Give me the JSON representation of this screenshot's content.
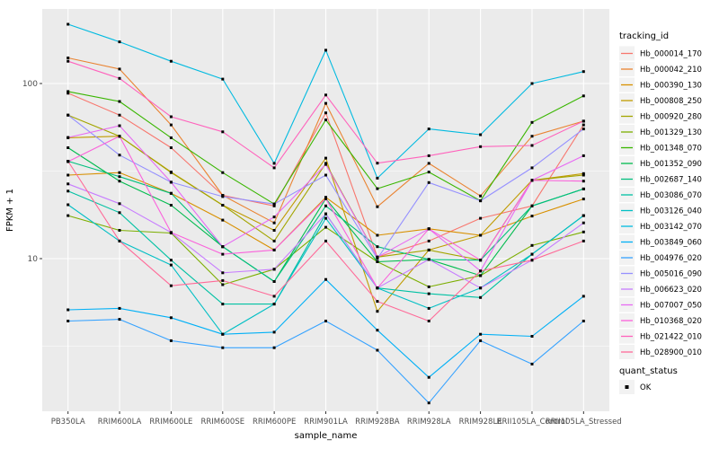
{
  "chart_data": {
    "type": "line",
    "title": "",
    "xlabel": "sample_name",
    "ylabel": "FPKM + 1",
    "y_scale": "log10",
    "y_ticks": [
      10,
      100
    ],
    "y_tick_labels": [
      "10",
      "100"
    ],
    "y_minor_ticks": [
      31.62,
      3.162
    ],
    "ylim": [
      1.35,
      270
    ],
    "grid": "on",
    "legend_position": "right",
    "panel_bg": "#EBEBEB",
    "grid_color": "#FFFFFF",
    "tick_label_color": "#4D4D4D",
    "point_color": "#000000",
    "legend_key_bg": "#F2F2F2",
    "categories": [
      "PB350LA",
      "RRIM600LA",
      "RRIM600LE",
      "RRIM600SE",
      "RRIM600PE",
      "RRIM901LA",
      "RRIM928BA",
      "RRIM928LA",
      "RRIM928LE",
      "RRII105LA_Control",
      "RRII105LA_Stressed"
    ],
    "legend_title": "tracking_id",
    "point_legend": {
      "title": "quant_status",
      "items": [
        "OK"
      ]
    },
    "series": [
      {
        "name": "Hb_000014_170",
        "color": "#F8766D",
        "values": [
          88,
          66,
          43,
          23,
          20,
          68,
          10.2,
          12.6,
          17,
          20,
          58
        ]
      },
      {
        "name": "Hb_000042_210",
        "color": "#EA8331",
        "values": [
          140,
          121,
          58,
          23,
          16,
          77,
          19.8,
          35,
          22.8,
          50,
          61
        ]
      },
      {
        "name": "Hb_000390_130",
        "color": "#D89000",
        "values": [
          30,
          31,
          23.6,
          16.6,
          11.2,
          22.4,
          13.6,
          14.8,
          13.6,
          17.5,
          21.9
        ]
      },
      {
        "name": "Hb_000808_250",
        "color": "#C09B00",
        "values": [
          49,
          50,
          31.2,
          20.2,
          14.5,
          37.5,
          5.0,
          11.2,
          13.6,
          28,
          30.6
        ]
      },
      {
        "name": "Hb_000920_280",
        "color": "#A3A500",
        "values": [
          66,
          50,
          31,
          20.2,
          12.6,
          35,
          10.2,
          11.2,
          9.8,
          28,
          30
        ]
      },
      {
        "name": "Hb_001329_130",
        "color": "#7CAE00",
        "values": [
          17.6,
          14.5,
          14,
          7.1,
          8.7,
          15.1,
          9.6,
          6.9,
          8.0,
          11.9,
          14.2
        ]
      },
      {
        "name": "Hb_001348_070",
        "color": "#39B600",
        "values": [
          90,
          79,
          49,
          31,
          20.5,
          62,
          25.1,
          31.2,
          21.4,
          60,
          85
        ]
      },
      {
        "name": "Hb_001352_090",
        "color": "#00BB4E",
        "values": [
          43,
          27.7,
          20.2,
          11.7,
          7.4,
          22,
          9.6,
          9.9,
          8.0,
          20,
          25
        ]
      },
      {
        "name": "Hb_002687_140",
        "color": "#00BF7D",
        "values": [
          36,
          29.4,
          23.6,
          11.7,
          7.4,
          20,
          11.7,
          9.9,
          9.8,
          20,
          25
        ]
      },
      {
        "name": "Hb_003086_070",
        "color": "#00C1A3",
        "values": [
          24.3,
          18.3,
          9.8,
          5.5,
          5.5,
          18,
          6.8,
          6.3,
          6.0,
          10.6,
          17.6
        ]
      },
      {
        "name": "Hb_003126_040",
        "color": "#00BFC4",
        "values": [
          20.3,
          12.6,
          9.2,
          3.7,
          5.5,
          17,
          6.8,
          5.2,
          6.8,
          10.6,
          17.6
        ]
      },
      {
        "name": "Hb_003142_070",
        "color": "#00BAE0",
        "values": [
          218,
          173,
          134,
          106,
          35,
          155,
          28.8,
          55,
          51,
          100,
          117
        ]
      },
      {
        "name": "Hb_003849_060",
        "color": "#00B0F6",
        "values": [
          5.1,
          5.2,
          4.6,
          3.7,
          3.8,
          7.6,
          3.9,
          2.1,
          3.7,
          3.6,
          6.1
        ]
      },
      {
        "name": "Hb_004976_020",
        "color": "#35A2FF",
        "values": [
          4.4,
          4.5,
          3.4,
          3.1,
          3.1,
          4.4,
          3.0,
          1.5,
          3.4,
          2.5,
          4.4
        ]
      },
      {
        "name": "Hb_005016_090",
        "color": "#9590FF",
        "values": [
          66,
          39,
          27.3,
          22.6,
          20.5,
          30,
          10,
          27.2,
          21.4,
          33,
          55
        ]
      },
      {
        "name": "Hb_006623_020",
        "color": "#C77CFF",
        "values": [
          26.7,
          20.6,
          14.1,
          8.3,
          8.7,
          18,
          6.8,
          9.9,
          6.8,
          9.8,
          16
        ]
      },
      {
        "name": "Hb_007007_050",
        "color": "#E76BF3",
        "values": [
          49.2,
          57.4,
          27.3,
          11.7,
          17.3,
          34.5,
          10.2,
          14.8,
          8.5,
          28,
          38.7
        ]
      },
      {
        "name": "Hb_010368_020",
        "color": "#FA62DB",
        "values": [
          35.8,
          50,
          14.1,
          10.6,
          11.2,
          22,
          6.8,
          14.8,
          9.8,
          28,
          27.7
        ]
      },
      {
        "name": "Hb_021422_010",
        "color": "#FF62BC",
        "values": [
          134,
          107,
          64.6,
          53,
          33,
          86,
          35.1,
          38.7,
          43.6,
          44.3,
          61
        ]
      },
      {
        "name": "Hb_028900_010",
        "color": "#FF6A98",
        "values": [
          36,
          12.6,
          7.0,
          7.5,
          6.1,
          12.6,
          5.7,
          4.4,
          8.5,
          9.8,
          12.6
        ]
      }
    ]
  }
}
